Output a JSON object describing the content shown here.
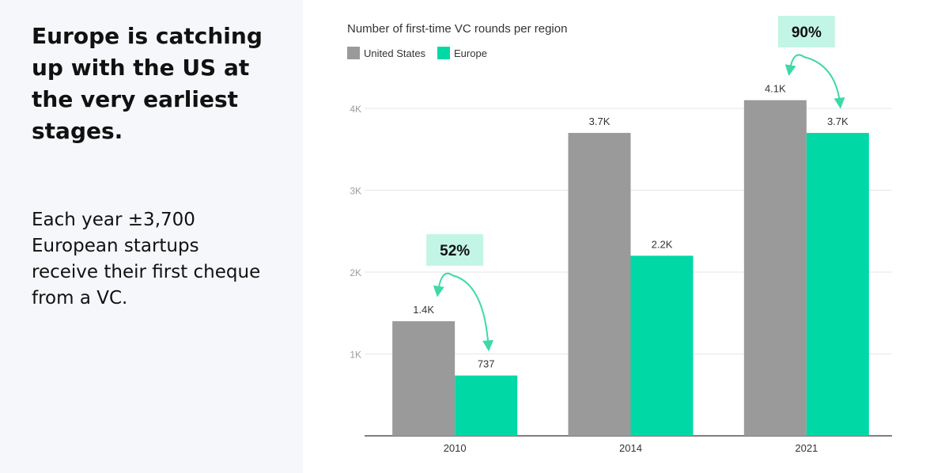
{
  "left": {
    "headline": "Europe is catching\nup with the US at\nthe very earliest\nstages.",
    "body": "Each year ±3,700\nEuropean startups\nreceive their first cheque\nfrom a VC."
  },
  "colors": {
    "us": "#9a9a9a",
    "europe": "#00d9a6",
    "callout_bg": "#c3f5e6",
    "arrow": "#3dd9a8"
  },
  "chart_data": {
    "type": "bar",
    "title": "Number of first-time VC rounds per region",
    "xlabel": "",
    "ylabel": "",
    "categories": [
      "2010",
      "2014",
      "2021"
    ],
    "series": [
      {
        "name": "United States",
        "values": [
          1400,
          3700,
          4100
        ],
        "labels": [
          "1.4K",
          "3.7K",
          "4.1K"
        ]
      },
      {
        "name": "Europe",
        "values": [
          737,
          2200,
          3700
        ],
        "labels": [
          "737",
          "2.2K",
          "3.7K"
        ]
      }
    ],
    "ylim": [
      0,
      4000
    ],
    "yticks": [
      1000,
      2000,
      3000,
      4000
    ],
    "ytick_labels": [
      "1K",
      "2K",
      "3K",
      "4K"
    ],
    "grid": true,
    "legend": "top-left",
    "annotations": [
      {
        "category": "2010",
        "text": "52%"
      },
      {
        "category": "2021",
        "text": "90%"
      }
    ]
  }
}
